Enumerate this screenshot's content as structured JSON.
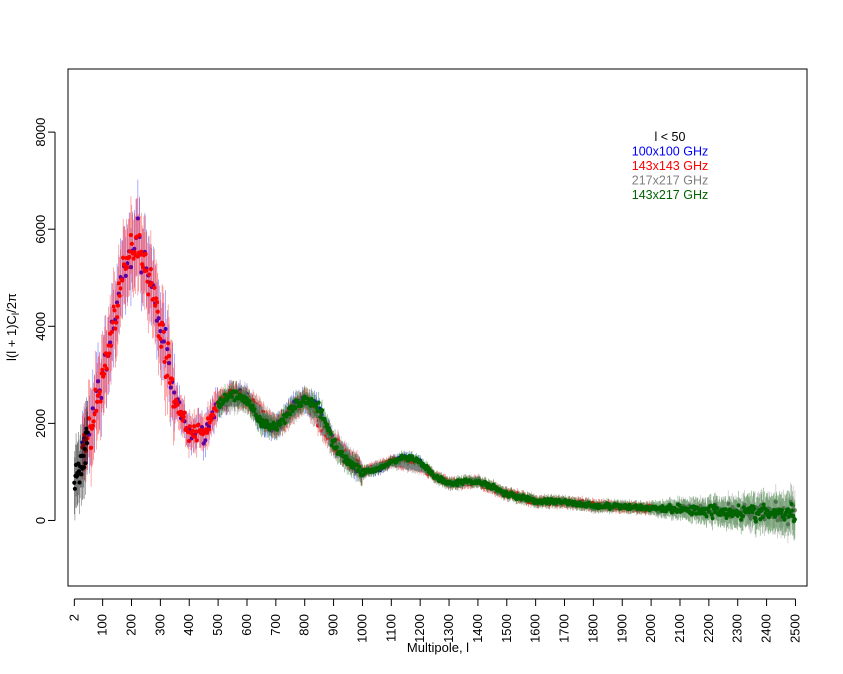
{
  "chart_data": {
    "type": "scatter",
    "title": "",
    "xlabel": "Multipole, l",
    "ylabel": "l(l+1)C_l/2π",
    "xlim": [
      -20,
      2540
    ],
    "ylim": [
      -1350,
      9300
    ],
    "x_ticks": [
      "2",
      "100",
      "200",
      "300",
      "400",
      "500",
      "600",
      "700",
      "800",
      "900",
      "1000",
      "1100",
      "1200",
      "1300",
      "1400",
      "1500",
      "1600",
      "1700",
      "1800",
      "1900",
      "2000",
      "2100",
      "2200",
      "2300",
      "2400",
      "2500"
    ],
    "x_tick_values": [
      2,
      100,
      200,
      300,
      400,
      500,
      600,
      700,
      800,
      900,
      1000,
      1100,
      1200,
      1300,
      1400,
      1500,
      1600,
      1700,
      1800,
      1900,
      2000,
      2100,
      2200,
      2300,
      2400,
      2500
    ],
    "y_ticks": [
      "0",
      "2000",
      "4000",
      "6000",
      "8000"
    ],
    "y_tick_values": [
      0,
      2000,
      4000,
      6000,
      8000
    ],
    "grid": false,
    "legend_position": "top-right",
    "series": [
      {
        "name": "l < 50",
        "color": "#000000",
        "x_range": [
          2,
          49
        ],
        "x": [
          2,
          10,
          20,
          30,
          40,
          49
        ],
        "y": [
          800,
          900,
          1000,
          1200,
          1500,
          1800
        ]
      },
      {
        "name": "100x100 GHz",
        "color": "#0000ff",
        "x_range": [
          30,
          1200
        ],
        "x": [
          50,
          100,
          150,
          200,
          220,
          250,
          300,
          350,
          400,
          450,
          500,
          550,
          600,
          650,
          700,
          750,
          800,
          850,
          900,
          950,
          1000,
          1050,
          1100,
          1150,
          1200
        ],
        "y": [
          1700,
          2900,
          4500,
          5600,
          5800,
          5300,
          4000,
          2500,
          1800,
          1800,
          2400,
          2600,
          2500,
          2000,
          1900,
          2300,
          2500,
          2300,
          1600,
          1200,
          1000,
          1050,
          1200,
          1300,
          1200
        ]
      },
      {
        "name": "143x143 GHz",
        "color": "#ff0000",
        "x_range": [
          30,
          2000
        ],
        "x": [
          50,
          100,
          150,
          200,
          220,
          250,
          300,
          350,
          400,
          450,
          500,
          550,
          600,
          700,
          800,
          900,
          1000,
          1100,
          1200,
          1300,
          1400,
          1500,
          1600,
          1700,
          1800,
          1900,
          2000
        ],
        "y": [
          1700,
          2900,
          4500,
          5600,
          5800,
          5300,
          4000,
          2500,
          1800,
          1800,
          2400,
          2600,
          2500,
          1900,
          2500,
          1600,
          1000,
          1200,
          1100,
          750,
          800,
          550,
          400,
          380,
          300,
          280,
          260
        ]
      },
      {
        "name": "217x217 GHz",
        "color": "#808080",
        "x_range": [
          500,
          2500
        ],
        "x": [
          500,
          600,
          700,
          800,
          900,
          1000,
          1100,
          1200,
          1300,
          1400,
          1500,
          1600,
          1700,
          1800,
          1900,
          2000,
          2100,
          2200,
          2300,
          2400,
          2500
        ],
        "y": [
          2400,
          2500,
          1900,
          2500,
          1600,
          1000,
          1200,
          1100,
          750,
          800,
          550,
          400,
          380,
          300,
          280,
          260,
          230,
          200,
          180,
          150,
          120
        ]
      },
      {
        "name": "143x217 GHz",
        "color": "#006400",
        "x_range": [
          500,
          2500
        ],
        "x": [
          500,
          550,
          600,
          650,
          700,
          750,
          800,
          850,
          900,
          950,
          1000,
          1050,
          1100,
          1150,
          1200,
          1250,
          1300,
          1350,
          1400,
          1450,
          1500,
          1600,
          1700,
          1800,
          1900,
          2000,
          2100,
          2200,
          2300,
          2400,
          2500
        ],
        "y": [
          2400,
          2600,
          2500,
          2000,
          1900,
          2300,
          2500,
          2300,
          1600,
          1200,
          1000,
          1050,
          1200,
          1300,
          1200,
          900,
          750,
          800,
          800,
          700,
          550,
          400,
          380,
          300,
          280,
          260,
          230,
          200,
          180,
          150,
          120
        ]
      }
    ]
  }
}
